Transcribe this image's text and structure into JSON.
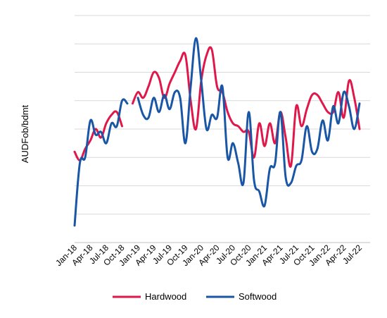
{
  "chart_data": {
    "type": "line",
    "title": "",
    "xlabel": "",
    "ylabel": "AUDFob/bdmt",
    "grid": true,
    "y_tick_labels_shown": false,
    "ylim": [
      0,
      8
    ],
    "legend": {
      "position": "bottom"
    },
    "colors": {
      "Hardwood": "#e0174a",
      "Softwood": "#1a56a6",
      "grid": "#d9d9d9"
    },
    "x_tick_labels": [
      "Jan-18",
      "Apr-18",
      "Jul-18",
      "Oct-18",
      "Jan-19",
      "Apr-19",
      "Jul-19",
      "Oct-19",
      "Jan-20",
      "Apr-20",
      "Jul-20",
      "Oct-20",
      "Jan-21",
      "Apr-21",
      "Jul-21",
      "Oct-21",
      "Jan-22",
      "Apr-22",
      "Jul-22"
    ],
    "x": [
      "Jan-18",
      "Feb-18",
      "Mar-18",
      "Apr-18",
      "May-18",
      "Jun-18",
      "Jul-18",
      "Aug-18",
      "Sep-18",
      "Oct-18",
      "Nov-18",
      "Dec-18",
      "Jan-19",
      "Feb-19",
      "Mar-19",
      "Apr-19",
      "May-19",
      "Jun-19",
      "Jul-19",
      "Aug-19",
      "Sep-19",
      "Oct-19",
      "Nov-19",
      "Dec-19",
      "Jan-20",
      "Feb-20",
      "Mar-20",
      "Apr-20",
      "May-20",
      "Jun-20",
      "Jul-20",
      "Aug-20",
      "Sep-20",
      "Oct-20",
      "Nov-20",
      "Dec-20",
      "Jan-21",
      "Feb-21",
      "Mar-21",
      "Apr-21",
      "May-21",
      "Jun-21",
      "Jul-21",
      "Aug-21",
      "Sep-21",
      "Oct-21",
      "Nov-21",
      "Dec-21",
      "Jan-22",
      "Feb-22",
      "Mar-22",
      "Apr-22",
      "May-22",
      "Jun-22",
      "Jul-22",
      "Aug-22",
      "Sep-22"
    ],
    "series": [
      {
        "name": "Hardwood",
        "values": [
          3.2,
          2.9,
          3.3,
          3.6,
          4.0,
          3.7,
          4.2,
          4.5,
          4.6,
          4.1,
          null,
          4.9,
          5.3,
          5.1,
          5.5,
          6.0,
          5.8,
          5.1,
          5.6,
          6.0,
          6.4,
          6.6,
          5.0,
          4.0,
          5.7,
          6.6,
          6.8,
          5.5,
          5.3,
          4.6,
          4.2,
          4.1,
          3.9,
          3.9,
          3.0,
          4.2,
          3.4,
          4.2,
          3.5,
          4.6,
          3.7,
          2.7,
          4.8,
          4.1,
          4.7,
          5.2,
          5.2,
          4.9,
          4.6,
          4.6,
          5.3,
          4.4,
          5.7,
          5.1,
          4.0,
          null,
          null
        ],
        "null_note": "gap"
      },
      {
        "name": "Softwood",
        "values": [
          0.6,
          2.8,
          3.0,
          4.3,
          3.8,
          3.9,
          3.5,
          4.2,
          4.1,
          5.0,
          4.9,
          null,
          5.1,
          4.5,
          4.4,
          5.1,
          4.6,
          5.2,
          4.7,
          5.3,
          5.1,
          3.5,
          5.5,
          7.2,
          5.7,
          4.0,
          4.5,
          4.4,
          5.5,
          3.0,
          3.5,
          2.8,
          2.1,
          4.6,
          2.2,
          1.8,
          1.3,
          2.6,
          2.8,
          4.6,
          2.3,
          2.1,
          2.7,
          2.9,
          4.1,
          3.2,
          3.3,
          4.3,
          3.6,
          4.8,
          4.2,
          5.3,
          4.8,
          4.0,
          4.9,
          null,
          null
        ]
      }
    ]
  }
}
